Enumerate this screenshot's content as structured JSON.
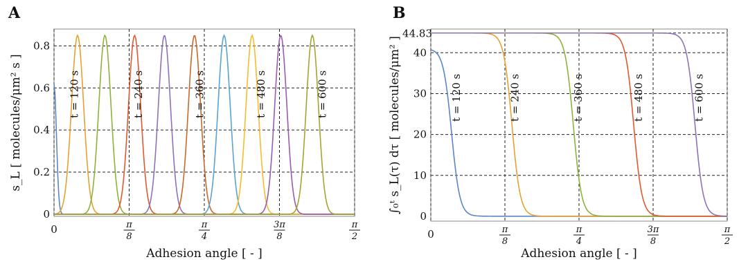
{
  "chart_data": [
    {
      "panel": "A",
      "type": "line",
      "xlabel": "Adhesion angle [ - ]",
      "ylabel": "s_L [ molecules/μm² s ]",
      "xlim": [
        0,
        1.5708
      ],
      "ylim": [
        -0.01,
        0.88
      ],
      "x_ticks": [
        {
          "value": 0,
          "label": "0"
        },
        {
          "value": 0.3927,
          "label": "π/8"
        },
        {
          "value": 0.7854,
          "label": "π/4"
        },
        {
          "value": 1.1781,
          "label": "3π/8"
        },
        {
          "value": 1.5708,
          "label": "π/2"
        }
      ],
      "y_ticks": [
        {
          "value": 0,
          "label": "0"
        },
        {
          "value": 0.2,
          "label": "0.2"
        },
        {
          "value": 0.4,
          "label": "0.4"
        },
        {
          "value": 0.6,
          "label": "0.6"
        },
        {
          "value": 0.8,
          "label": "0.8"
        }
      ],
      "vgrid": [
        0,
        0.3927,
        0.7854,
        1.1781,
        1.5708
      ],
      "hgrid": [
        0.2,
        0.4,
        0.6,
        0.8
      ],
      "grid": true,
      "peak_height": 0.85,
      "peak_width": 0.045,
      "series": [
        {
          "center": 0.0,
          "color": "#5a86c6"
        },
        {
          "center": 0.123,
          "color": "#e8a030"
        },
        {
          "center": 0.266,
          "color": "#8fb13b"
        },
        {
          "center": 0.421,
          "color": "#e4572e"
        },
        {
          "center": 0.577,
          "color": "#8c72b8"
        },
        {
          "center": 0.734,
          "color": "#c8692a"
        },
        {
          "center": 0.889,
          "color": "#5aa2cf"
        },
        {
          "center": 1.035,
          "color": "#f5bd2c"
        },
        {
          "center": 1.185,
          "color": "#9b59b0"
        },
        {
          "center": 1.35,
          "color": "#a3a52e"
        }
      ],
      "annotations": [
        {
          "text": "t = 120 s",
          "x": 0.125,
          "y": 0.57
        },
        {
          "text": "t = 240 s",
          "x": 0.46,
          "y": 0.57
        },
        {
          "text": "t = 360 s",
          "x": 0.78,
          "y": 0.57
        },
        {
          "text": "t = 480 s",
          "x": 1.1,
          "y": 0.57
        },
        {
          "text": "t = 600 s",
          "x": 1.42,
          "y": 0.57
        }
      ]
    },
    {
      "panel": "B",
      "type": "line",
      "xlabel": "Adhesion angle [ - ]",
      "ylabel": "∫₀ᵗ s_L(τ) dτ [ molecules/μm² ]",
      "xlim": [
        0,
        1.5708
      ],
      "ylim": [
        -1.2,
        45.8
      ],
      "x_ticks": [
        {
          "value": 0,
          "label": "0"
        },
        {
          "value": 0.3927,
          "label": "π/8"
        },
        {
          "value": 0.7854,
          "label": "π/4"
        },
        {
          "value": 1.1781,
          "label": "3π/8"
        },
        {
          "value": 1.5708,
          "label": "π/2"
        }
      ],
      "y_ticks": [
        {
          "value": 0,
          "label": "0"
        },
        {
          "value": 10,
          "label": "10"
        },
        {
          "value": 20,
          "label": "20"
        },
        {
          "value": 30,
          "label": "30"
        },
        {
          "value": 40,
          "label": "40"
        },
        {
          "value": 44.83,
          "label": "44.83"
        }
      ],
      "vgrid": [
        0,
        0.3927,
        0.7854,
        1.1781,
        1.5708
      ],
      "hgrid": [
        10,
        20,
        30,
        40,
        44.83
      ],
      "grid": true,
      "plateau": 44.83,
      "sigmoid_width": 0.022,
      "series": [
        {
          "midpoint": 0.11,
          "color": "#5a86c6",
          "start_value": 41.0
        },
        {
          "midpoint": 0.43,
          "color": "#e8a030"
        },
        {
          "midpoint": 0.755,
          "color": "#8fb13b"
        },
        {
          "midpoint": 1.075,
          "color": "#e4572e"
        },
        {
          "midpoint": 1.4,
          "color": "#8c72b8"
        }
      ],
      "annotations": [
        {
          "text": "t = 120 s",
          "x": 0.155,
          "y": 29
        },
        {
          "text": "t = 240 s",
          "x": 0.465,
          "y": 29
        },
        {
          "text": "t = 360 s",
          "x": 0.8,
          "y": 29
        },
        {
          "text": "t = 480 s",
          "x": 1.12,
          "y": 29
        },
        {
          "text": "t = 600 s",
          "x": 1.44,
          "y": 29
        }
      ]
    }
  ],
  "panels": {
    "A": {
      "label": "A"
    },
    "B": {
      "label": "B"
    }
  }
}
